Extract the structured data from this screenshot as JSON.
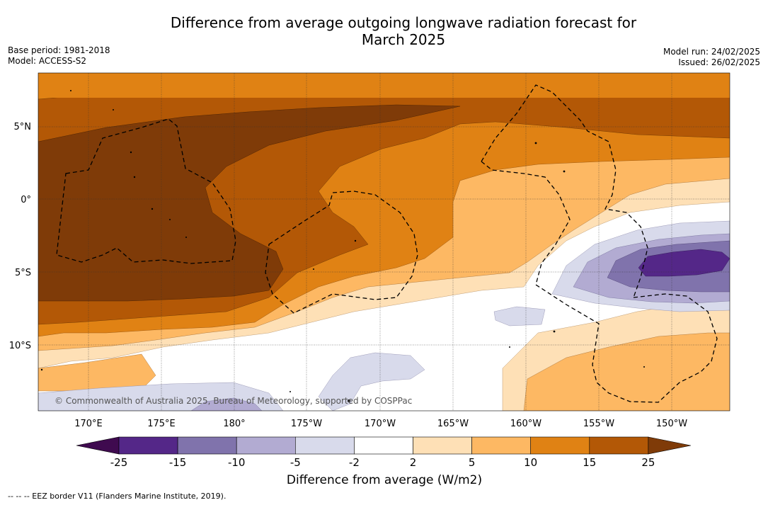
{
  "title_line1": "Difference from average outgoing longwave radiation forecast for",
  "title_line2": "March 2025",
  "meta_left": [
    "Base period: 1981-2018",
    "Model: ACCESS-S2"
  ],
  "meta_right": [
    "Model run: 24/02/2025",
    "Issued: 26/02/2025"
  ],
  "copyright": "© Commonwealth of Australia 2025, Bureau of Meteorology, supported by COSPPac",
  "lat_labels": [
    "5°N",
    "0°",
    "5°S",
    "10°S"
  ],
  "lon_labels": [
    "170°E",
    "175°E",
    "180°",
    "175°W",
    "170°W",
    "165°W",
    "160°W",
    "155°W",
    "150°W"
  ],
  "colorbar": {
    "title": "Difference from average (W/m2)",
    "ticks": [
      "-25",
      "-15",
      "-10",
      "-5",
      "-2",
      "2",
      "5",
      "10",
      "15",
      "25"
    ],
    "colors": [
      "#3f0a4f",
      "#542788",
      "#8073ac",
      "#b2abd2",
      "#d8daeb",
      "#ffffff",
      "#fee0b6",
      "#fdb863",
      "#e08214",
      "#b35806",
      "#7f3b08"
    ]
  },
  "legend_text": "--  --  -- EEZ border V11 (Flanders Marine Institute, 2019)."
}
